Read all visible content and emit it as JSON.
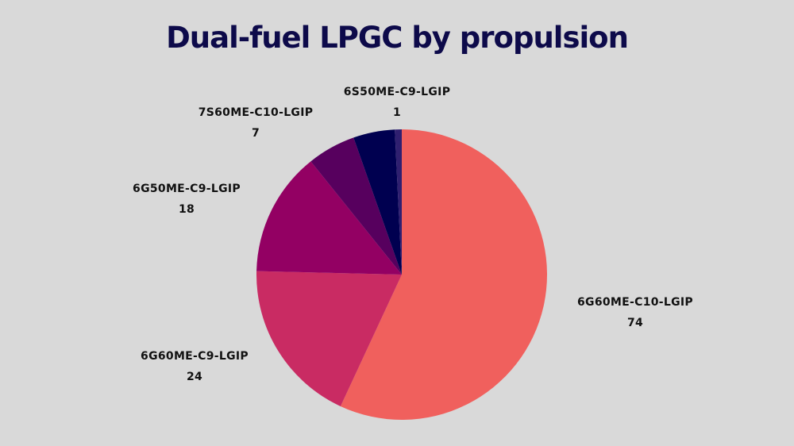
{
  "title": "Dual-fuel LPGC by propulsion",
  "chart_data": {
    "type": "pie",
    "title": "Dual-fuel LPGC by propulsion",
    "start_angle": "12 o'clock",
    "direction": "clockwise",
    "slices": [
      {
        "label": "6G60ME-C10-LGIP",
        "value": 74,
        "color": "#f0605d"
      },
      {
        "label": "6G60ME-C9-LGIP",
        "value": 24,
        "color": "#c92b63"
      },
      {
        "label": "6G50ME-C9-LGIP",
        "value": 18,
        "color": "#930063"
      },
      {
        "label": "7S60ME-C10-LGIP",
        "value": 7,
        "color": "#57005e"
      },
      {
        "label": "",
        "value": 6,
        "color": "#000050"
      },
      {
        "label": "6S50ME-C9-LGIP",
        "value": 1,
        "color": "#2f1f70"
      }
    ]
  },
  "labels": [
    {
      "name": "6G60ME-C10-LGIP",
      "value": "74"
    },
    {
      "name": "6G60ME-C9-LGIP",
      "value": "24"
    },
    {
      "name": "6G50ME-C9-LGIP",
      "value": "18"
    },
    {
      "name": "7S60ME-C10-LGIP",
      "value": "7"
    },
    {
      "name": "6S50ME-C9-LGIP",
      "value": "1"
    }
  ]
}
